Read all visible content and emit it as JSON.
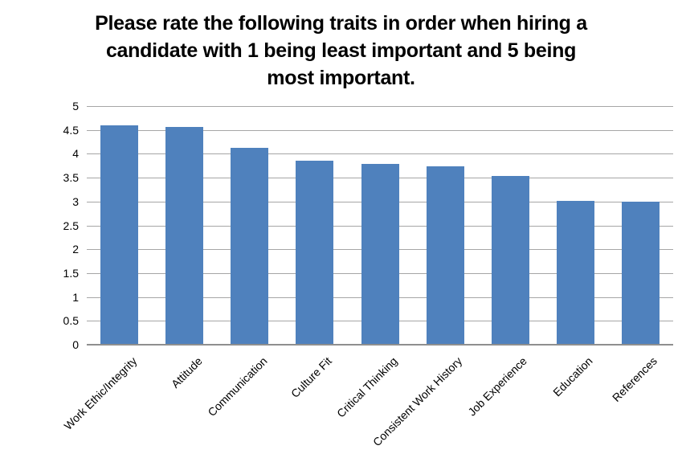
{
  "title": {
    "lines": [
      "Please rate the following traits in order when hiring a",
      "candidate with 1 being least important and 5 being",
      "most important."
    ]
  },
  "chart_data": {
    "type": "bar",
    "title": "Please rate the following traits in order when hiring a candidate with 1 being least important and 5 being most important.",
    "categories": [
      "Work Ethic/Integrity",
      "Attitude",
      "Communication",
      "Culture Fit",
      "Critical Thinking",
      "Consistent Work History",
      "Job Experience",
      "Education",
      "References"
    ],
    "values": [
      4.6,
      4.57,
      4.12,
      3.86,
      3.78,
      3.74,
      3.53,
      3.02,
      3.0
    ],
    "xlabel": "",
    "ylabel": "",
    "ylim": [
      0,
      5
    ],
    "ytick_values": [
      0,
      0.5,
      1,
      1.5,
      2,
      2.5,
      3,
      3.5,
      4,
      4.5,
      5
    ],
    "ytick_labels": [
      "0",
      "0.5",
      "1",
      "1.5",
      "2",
      "2.5",
      "3",
      "3.5",
      "4",
      "4.5",
      "5"
    ],
    "grid": true,
    "legend": false,
    "x_labels_rotation_deg": -45,
    "colors": {
      "bar": "#4f81bd",
      "gridline": "#a6a6a6",
      "axis_line": "#8f8f8f",
      "text": "#000000",
      "background": "#ffffff"
    }
  }
}
